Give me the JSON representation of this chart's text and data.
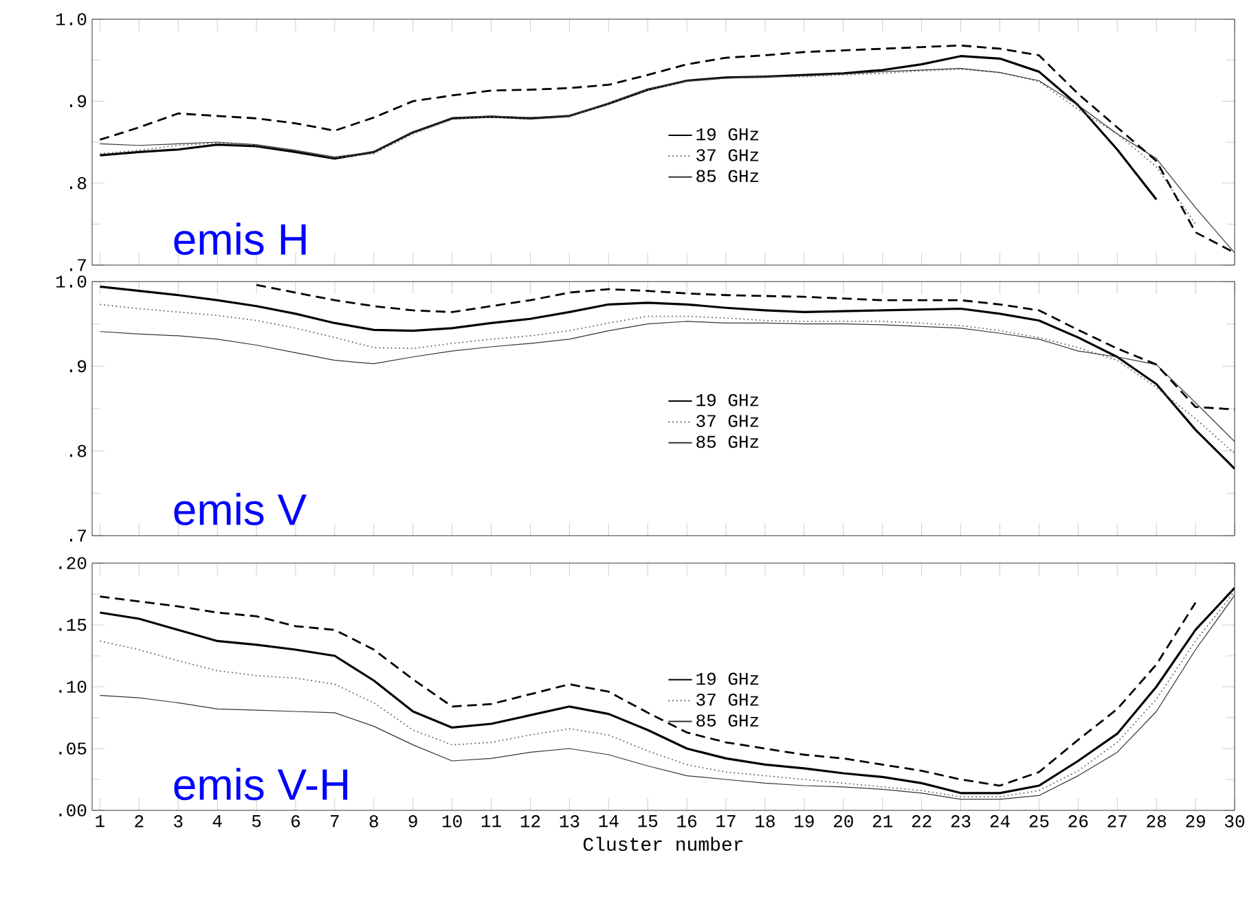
{
  "chart_data": [
    {
      "type": "line",
      "x": [
        1,
        2,
        3,
        4,
        5,
        6,
        7,
        8,
        9,
        10,
        11,
        12,
        13,
        14,
        15,
        16,
        17,
        18,
        19,
        20,
        21,
        22,
        23,
        24,
        25,
        26,
        27,
        28,
        29,
        30
      ],
      "xlim": [
        0.8,
        30
      ],
      "xticks": [
        1,
        2,
        3,
        4,
        5,
        6,
        7,
        8,
        9,
        10,
        11,
        12,
        13,
        14,
        15,
        16,
        17,
        18,
        19,
        20,
        21,
        22,
        23,
        24,
        25,
        26,
        27,
        28,
        29,
        30
      ],
      "ylim": [
        0.7,
        1.0
      ],
      "yticks": [
        {
          "value": 0.7,
          "label": ".7"
        },
        {
          "value": 0.8,
          "label": ".8"
        },
        {
          "value": 0.9,
          "label": ".9"
        },
        {
          "value": 1.0,
          "label": "1.0"
        }
      ],
      "tick_labels": "y",
      "legend": "right",
      "annotations": [
        "emis H"
      ],
      "series": [
        {
          "name": "19 GHz",
          "color": "#000000",
          "line_style": "solid",
          "values": [
            0.834,
            0.838,
            0.841,
            0.847,
            0.845,
            0.838,
            0.83,
            0.838,
            0.862,
            0.879,
            0.881,
            0.879,
            0.882,
            0.897,
            0.914,
            0.925,
            0.929,
            0.93,
            0.932,
            0.934,
            0.938,
            0.945,
            0.955,
            0.952,
            0.936,
            0.895,
            0.841,
            0.78,
            null,
            null
          ]
        },
        {
          "name": "37 GHz",
          "color": "#666666",
          "line_style": "dotted",
          "values": [
            0.836,
            0.84,
            0.846,
            0.849,
            0.846,
            0.84,
            0.831,
            0.836,
            0.86,
            0.878,
            0.881,
            0.878,
            0.881,
            0.897,
            0.914,
            0.924,
            0.928,
            0.93,
            0.93,
            0.932,
            0.934,
            0.937,
            0.939,
            0.935,
            0.924,
            0.89,
            0.86,
            0.82,
            0.75,
            null
          ]
        },
        {
          "name": "85 GHz",
          "color": "#333333",
          "line_style": "solid",
          "values": [
            0.848,
            0.846,
            0.848,
            0.85,
            0.847,
            0.84,
            0.832,
            0.838,
            0.862,
            0.88,
            0.882,
            0.88,
            0.882,
            0.898,
            0.915,
            0.925,
            0.928,
            0.93,
            0.931,
            0.933,
            0.936,
            0.938,
            0.94,
            0.935,
            0.925,
            0.895,
            0.86,
            0.83,
            0.77,
            0.715
          ]
        },
        {
          "color": "#000000",
          "line_style": "dashed",
          "values": [
            0.853,
            0.868,
            0.885,
            0.882,
            0.879,
            0.873,
            0.864,
            0.88,
            0.9,
            0.907,
            0.913,
            0.914,
            0.916,
            0.92,
            0.932,
            0.945,
            0.953,
            0.956,
            0.96,
            0.962,
            0.964,
            0.966,
            0.968,
            0.964,
            0.956,
            0.909,
            0.868,
            0.827,
            0.74,
            0.715
          ]
        }
      ]
    },
    {
      "type": "line",
      "x": [
        1,
        2,
        3,
        4,
        5,
        6,
        7,
        8,
        9,
        10,
        11,
        12,
        13,
        14,
        15,
        16,
        17,
        18,
        19,
        20,
        21,
        22,
        23,
        24,
        25,
        26,
        27,
        28,
        29,
        30
      ],
      "xlim": [
        0.8,
        30
      ],
      "xticks": [
        1,
        2,
        3,
        4,
        5,
        6,
        7,
        8,
        9,
        10,
        11,
        12,
        13,
        14,
        15,
        16,
        17,
        18,
        19,
        20,
        21,
        22,
        23,
        24,
        25,
        26,
        27,
        28,
        29,
        30
      ],
      "ylim": [
        0.7,
        1.0
      ],
      "yticks": [
        {
          "value": 0.7,
          "label": ".7"
        },
        {
          "value": 0.8,
          "label": ".8"
        },
        {
          "value": 0.9,
          "label": ".9"
        },
        {
          "value": 1.0,
          "label": "1.0"
        }
      ],
      "tick_labels": "y",
      "legend": "right",
      "annotations": [
        "emis V"
      ],
      "series": [
        {
          "name": "19 GHz",
          "color": "#000000",
          "line_style": "solid",
          "values": [
            0.994,
            0.989,
            0.984,
            0.978,
            0.971,
            0.962,
            0.951,
            0.943,
            0.942,
            0.945,
            0.951,
            0.956,
            0.964,
            0.973,
            0.975,
            0.973,
            0.969,
            0.966,
            0.964,
            0.965,
            0.966,
            0.967,
            0.968,
            0.962,
            0.954,
            0.934,
            0.911,
            0.879,
            0.825,
            0.779
          ]
        },
        {
          "name": "37 GHz",
          "color": "#666666",
          "line_style": "dotted",
          "values": [
            0.973,
            0.968,
            0.964,
            0.96,
            0.954,
            0.945,
            0.934,
            0.922,
            0.921,
            0.927,
            0.932,
            0.936,
            0.942,
            0.951,
            0.959,
            0.959,
            0.957,
            0.954,
            0.953,
            0.953,
            0.953,
            0.951,
            0.948,
            0.942,
            0.934,
            0.922,
            0.907,
            0.875,
            0.838,
            0.797
          ]
        },
        {
          "name": "85 GHz",
          "color": "#333333",
          "line_style": "solid",
          "values": [
            0.941,
            0.938,
            0.936,
            0.932,
            0.925,
            0.916,
            0.907,
            0.903,
            0.911,
            0.918,
            0.923,
            0.927,
            0.932,
            0.942,
            0.95,
            0.953,
            0.951,
            0.951,
            0.95,
            0.95,
            0.949,
            0.947,
            0.945,
            0.939,
            0.932,
            0.918,
            0.911,
            0.902,
            0.857,
            0.811
          ]
        },
        {
          "color": "#000000",
          "line_style": "dashed",
          "values": [
            null,
            null,
            null,
            null,
            0.996,
            0.987,
            0.978,
            0.971,
            0.966,
            0.964,
            0.971,
            0.978,
            0.987,
            0.991,
            0.989,
            0.986,
            0.984,
            0.983,
            0.982,
            0.98,
            0.978,
            0.978,
            0.978,
            0.973,
            0.966,
            0.943,
            0.921,
            0.902,
            0.852,
            0.849
          ]
        }
      ]
    },
    {
      "type": "line",
      "x": [
        1,
        2,
        3,
        4,
        5,
        6,
        7,
        8,
        9,
        10,
        11,
        12,
        13,
        14,
        15,
        16,
        17,
        18,
        19,
        20,
        21,
        22,
        23,
        24,
        25,
        26,
        27,
        28,
        29,
        30
      ],
      "xlim": [
        0.8,
        30
      ],
      "xticks": [
        1,
        2,
        3,
        4,
        5,
        6,
        7,
        8,
        9,
        10,
        11,
        12,
        13,
        14,
        15,
        16,
        17,
        18,
        19,
        20,
        21,
        22,
        23,
        24,
        25,
        26,
        27,
        28,
        29,
        30
      ],
      "ylim": [
        0.0,
        0.2
      ],
      "yticks": [
        {
          "value": 0.0,
          "label": ".00"
        },
        {
          "value": 0.05,
          "label": ".05"
        },
        {
          "value": 0.1,
          "label": ".10"
        },
        {
          "value": 0.15,
          "label": ".15"
        },
        {
          "value": 0.2,
          "label": ".20"
        }
      ],
      "xlabel": "Cluster number",
      "legend": "right",
      "annotations": [
        "emis V-H"
      ],
      "series": [
        {
          "name": "19 GHz",
          "color": "#000000",
          "line_style": "solid",
          "values": [
            0.16,
            0.155,
            0.146,
            0.137,
            0.134,
            0.13,
            0.125,
            0.105,
            0.08,
            0.067,
            0.07,
            0.077,
            0.084,
            0.078,
            0.065,
            0.05,
            0.042,
            0.037,
            0.034,
            0.03,
            0.027,
            0.022,
            0.014,
            0.014,
            0.02,
            0.04,
            0.062,
            0.1,
            0.146,
            0.18
          ]
        },
        {
          "name": "37 GHz",
          "color": "#666666",
          "line_style": "dotted",
          "values": [
            0.137,
            0.13,
            0.121,
            0.113,
            0.109,
            0.107,
            0.102,
            0.087,
            0.065,
            0.053,
            0.055,
            0.061,
            0.066,
            0.061,
            0.048,
            0.037,
            0.031,
            0.028,
            0.025,
            0.022,
            0.019,
            0.016,
            0.011,
            0.011,
            0.016,
            0.032,
            0.055,
            0.09,
            0.137,
            0.177
          ]
        },
        {
          "name": "85 GHz",
          "color": "#333333",
          "line_style": "solid",
          "values": [
            0.093,
            0.091,
            0.087,
            0.082,
            0.081,
            0.08,
            0.079,
            0.068,
            0.053,
            0.04,
            0.042,
            0.047,
            0.05,
            0.045,
            0.036,
            0.028,
            0.025,
            0.022,
            0.02,
            0.019,
            0.017,
            0.014,
            0.009,
            0.009,
            0.012,
            0.028,
            0.047,
            0.08,
            0.13,
            0.174
          ]
        },
        {
          "color": "#000000",
          "line_style": "dashed",
          "values": [
            0.173,
            0.169,
            0.165,
            0.16,
            0.157,
            0.149,
            0.146,
            0.13,
            0.106,
            0.084,
            0.086,
            0.094,
            0.102,
            0.096,
            0.079,
            0.063,
            0.055,
            0.05,
            0.045,
            0.042,
            0.037,
            0.032,
            0.025,
            0.02,
            0.031,
            0.057,
            0.082,
            0.118,
            0.168,
            null
          ]
        }
      ]
    }
  ]
}
